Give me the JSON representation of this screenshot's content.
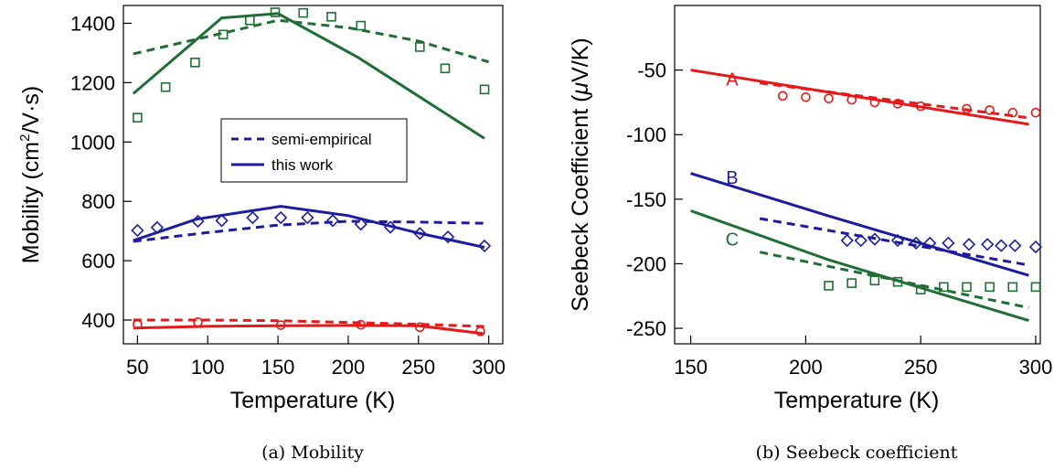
{
  "chart_data": [
    {
      "type": "line",
      "caption": "(a) Mobility",
      "xlabel": "Temperature (K)",
      "ylabel_parts": [
        "Mobility (cm",
        "2",
        "/V·s)"
      ],
      "xlim": [
        40,
        310
      ],
      "ylim": [
        320,
        1460
      ],
      "xticks": [
        50,
        100,
        150,
        200,
        250,
        300
      ],
      "yticks": [
        400,
        600,
        800,
        1000,
        1200,
        1400
      ],
      "legend": {
        "position": "center-right",
        "entries": [
          {
            "label": "semi-empirical",
            "style": "dashed",
            "color": "#1c1c9c"
          },
          {
            "label": "this work",
            "style": "solid",
            "color": "#1c1c9c"
          }
        ]
      },
      "series": [
        {
          "color": "#1f6e35",
          "style": "solid",
          "x": [
            47,
            110,
            150,
            207,
            297
          ],
          "y": [
            1163,
            1418,
            1433,
            1285,
            1012
          ]
        },
        {
          "color": "#1f6e35",
          "style": "dashed",
          "x": [
            47,
            100,
            150,
            200,
            250,
            300
          ],
          "y": [
            1297,
            1355,
            1410,
            1385,
            1340,
            1270
          ]
        },
        {
          "color": "#1f6e35",
          "style": "marker",
          "marker": "square",
          "x": [
            50,
            70,
            91,
            111,
            130,
            148,
            168,
            188,
            209,
            251,
            269,
            297
          ],
          "y": [
            1082,
            1185,
            1268,
            1362,
            1410,
            1437,
            1435,
            1422,
            1392,
            1320,
            1248,
            1177
          ]
        },
        {
          "color": "#1c1c9c",
          "style": "solid",
          "x": [
            47,
            92,
            152,
            200,
            250,
            297
          ],
          "y": [
            668,
            740,
            783,
            752,
            693,
            645
          ]
        },
        {
          "color": "#1c1c9c",
          "style": "dashed",
          "x": [
            47,
            100,
            150,
            200,
            250,
            300
          ],
          "y": [
            665,
            695,
            720,
            733,
            730,
            726
          ]
        },
        {
          "color": "#1c1c9c",
          "style": "marker",
          "marker": "diamond",
          "x": [
            50,
            64,
            93,
            110,
            132,
            152,
            171,
            189,
            209,
            230,
            251,
            271,
            297
          ],
          "y": [
            702,
            712,
            733,
            735,
            745,
            745,
            745,
            735,
            723,
            713,
            692,
            680,
            650
          ]
        },
        {
          "color": "#e51919",
          "style": "solid",
          "x": [
            47,
            100,
            150,
            200,
            250,
            297
          ],
          "y": [
            373,
            379,
            381,
            382,
            381,
            354
          ]
        },
        {
          "color": "#e51919",
          "style": "dashed",
          "x": [
            47,
            100,
            150,
            200,
            250,
            300
          ],
          "y": [
            400,
            400,
            398,
            392,
            386,
            378
          ]
        },
        {
          "color": "#e51919",
          "style": "marker",
          "marker": "circle",
          "x": [
            50,
            93,
            152,
            209,
            251,
            294
          ],
          "y": [
            385,
            393,
            383,
            384,
            376,
            362
          ]
        }
      ]
    },
    {
      "type": "line",
      "caption": "(b) Seebeck coefficient",
      "xlabel": "Temperature (K)",
      "ylabel_parts": [
        "Seebeck Coefficient (",
        "μ",
        "V/K)"
      ],
      "xlim": [
        143,
        302
      ],
      "ylim": [
        -262,
        0
      ],
      "xticks": [
        150,
        200,
        250,
        300
      ],
      "yticks": [
        -50,
        -100,
        -150,
        -200,
        -250
      ],
      "curve_labels": [
        {
          "text": "A",
          "color": "#e51919",
          "x": 168,
          "y": -62
        },
        {
          "text": "B",
          "color": "#1c1c9c",
          "x": 168,
          "y": -138
        },
        {
          "text": "C",
          "color": "#1f6e35",
          "x": 168,
          "y": -186
        }
      ],
      "series": [
        {
          "color": "#e51919",
          "style": "solid",
          "x": [
            150,
            297
          ],
          "y": [
            -50,
            -92
          ]
        },
        {
          "color": "#e51919",
          "style": "dashed",
          "x": [
            180,
            297
          ],
          "y": [
            -60,
            -87
          ]
        },
        {
          "color": "#e51919",
          "style": "marker",
          "marker": "circle",
          "x": [
            190,
            200,
            210,
            220,
            230,
            240,
            250,
            270,
            280,
            290,
            300
          ],
          "y": [
            -70,
            -71,
            -72,
            -73,
            -75,
            -76,
            -78,
            -80,
            -81,
            -83,
            -83
          ]
        },
        {
          "color": "#1c1c9c",
          "style": "solid",
          "x": [
            150,
            210,
            297
          ],
          "y": [
            -130,
            -163,
            -209
          ]
        },
        {
          "color": "#1c1c9c",
          "style": "dashed",
          "x": [
            180,
            297
          ],
          "y": [
            -165,
            -201
          ]
        },
        {
          "color": "#1c1c9c",
          "style": "marker",
          "marker": "diamond",
          "x": [
            218,
            224,
            230,
            240,
            248,
            254,
            262,
            271,
            279,
            285,
            291,
            300
          ],
          "y": [
            -182,
            -182,
            -181,
            -182,
            -184,
            -184,
            -184,
            -185,
            -185,
            -186,
            -186,
            -187
          ]
        },
        {
          "color": "#1f6e35",
          "style": "solid",
          "x": [
            150,
            210,
            297
          ],
          "y": [
            -159,
            -197,
            -244
          ]
        },
        {
          "color": "#1f6e35",
          "style": "dashed",
          "x": [
            180,
            297
          ],
          "y": [
            -191,
            -234
          ]
        },
        {
          "color": "#1f6e35",
          "style": "marker",
          "marker": "square",
          "x": [
            210,
            220,
            230,
            240,
            250,
            260,
            270,
            280,
            290,
            300
          ],
          "y": [
            -217,
            -215,
            -213,
            -214,
            -220,
            -218,
            -218,
            -218,
            -218,
            -218
          ]
        }
      ]
    }
  ]
}
